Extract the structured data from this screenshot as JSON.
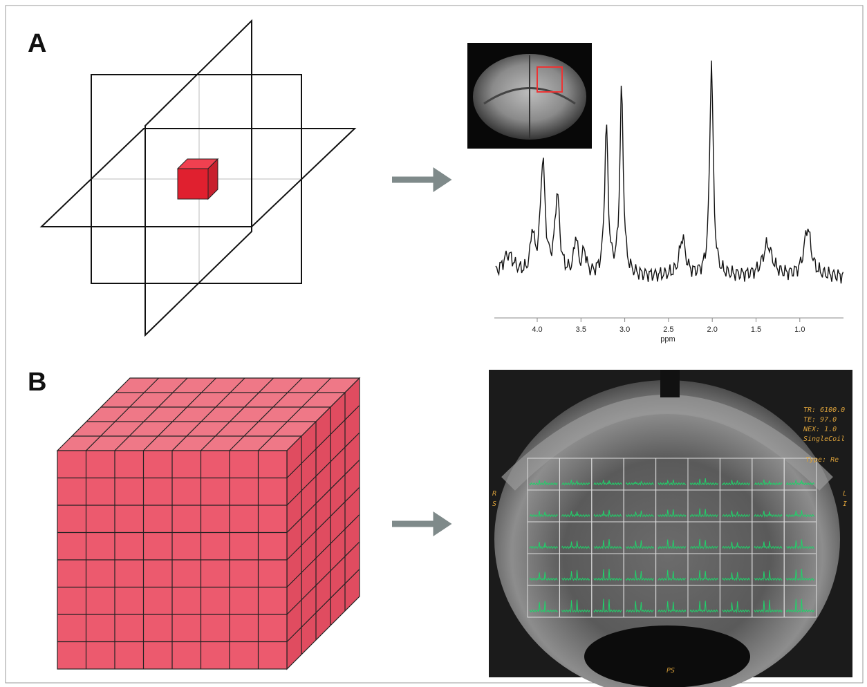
{
  "panels": {
    "a": {
      "label": "A",
      "spectrum": {
        "xticks": [
          "4.0",
          "3.5",
          "3.0",
          "2.5",
          "2.0",
          "1.5",
          "1.0"
        ],
        "xlabel": "ppm"
      }
    },
    "b": {
      "label": "B",
      "overlay": {
        "params": [
          "TR: 6100.0",
          "TE: 97.0",
          "NEX: 1.0",
          "SingleCoil",
          "Type: Re"
        ],
        "left": [
          "R",
          "S"
        ],
        "right": [
          "L",
          "I"
        ],
        "bottom": "PS"
      }
    }
  }
}
